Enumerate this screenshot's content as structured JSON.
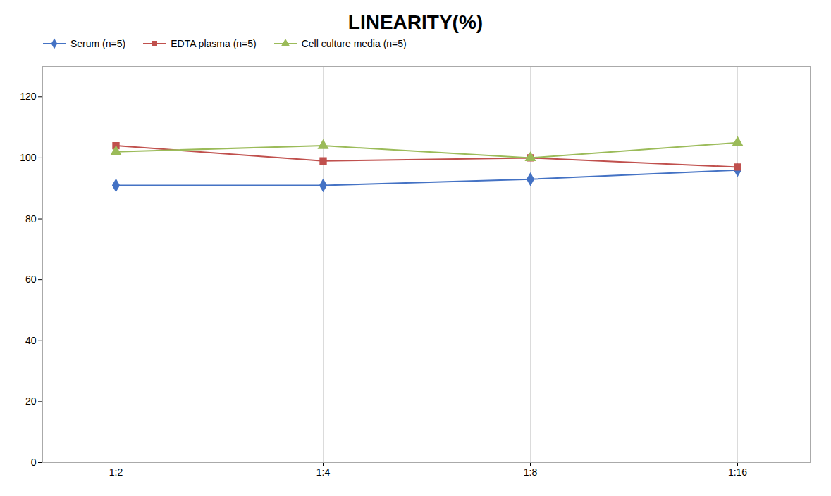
{
  "chart_data": {
    "type": "line",
    "title": "LINEARITY(%)",
    "categories": [
      "1:2",
      "1:4",
      "1:8",
      "1:16"
    ],
    "series": [
      {
        "name": "Serum (n=5)",
        "color": "#4472C4",
        "marker": "diamond",
        "values": [
          91,
          91,
          93,
          96
        ]
      },
      {
        "name": "EDTA plasma (n=5)",
        "color": "#C0504D",
        "marker": "square",
        "values": [
          104,
          99,
          100,
          97
        ]
      },
      {
        "name": "Cell culture media (n=5)",
        "color": "#9BBB59",
        "marker": "triangle",
        "values": [
          102,
          104,
          100,
          105
        ]
      }
    ],
    "ylim": [
      0,
      130
    ],
    "yticks": [
      0,
      20,
      40,
      60,
      80,
      100,
      120
    ],
    "grid": "x",
    "legend": "top"
  }
}
